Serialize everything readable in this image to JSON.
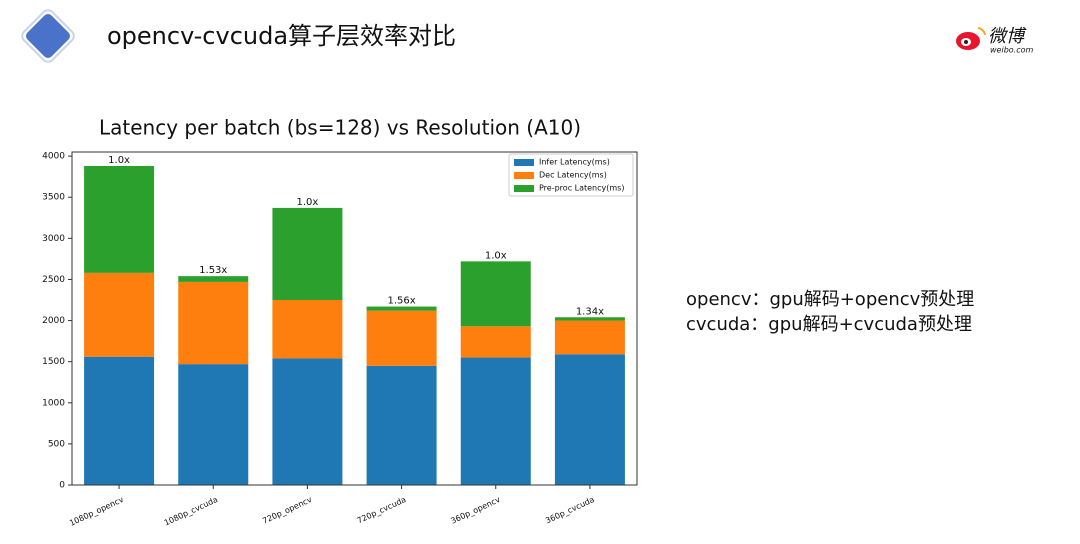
{
  "header": {
    "title": "opencv-cvcuda算子层效率对比",
    "logo_text": "微博",
    "logo_subtext": "weibo.com"
  },
  "notes": [
    "opencv：gpu解码+opencv预处理",
    "cvcuda：gpu解码+cvcuda预处理"
  ],
  "chart_data": {
    "type": "stacked_bar",
    "title": "Latency per batch (bs=128) vs Resolution (A10)",
    "categories": [
      "1080p_opencv",
      "1080p_cvcuda",
      "720p_opencv",
      "720p_cvcuda",
      "360p_opencv",
      "360p_cvcuda"
    ],
    "series": [
      {
        "name": "Infer Latency(ms)",
        "color": "#1f77b4",
        "values": [
          1560,
          1470,
          1540,
          1450,
          1550,
          1590
        ]
      },
      {
        "name": "Dec Latency(ms)",
        "color": "#ff7f0e",
        "values": [
          1020,
          1000,
          710,
          670,
          380,
          410
        ]
      },
      {
        "name": "Pre-proc Latency(ms)",
        "color": "#2ca02c",
        "values": [
          1300,
          70,
          1120,
          50,
          790,
          40
        ]
      }
    ],
    "speedup_labels": [
      "1.0x",
      "1.53x",
      "1.0x",
      "1.56x",
      "1.0x",
      "1.34x"
    ],
    "ylim": [
      0,
      4050
    ],
    "yticks": [
      0,
      500,
      1000,
      1500,
      2000,
      2500,
      3000,
      3500,
      4000
    ],
    "legend": "upper right"
  }
}
